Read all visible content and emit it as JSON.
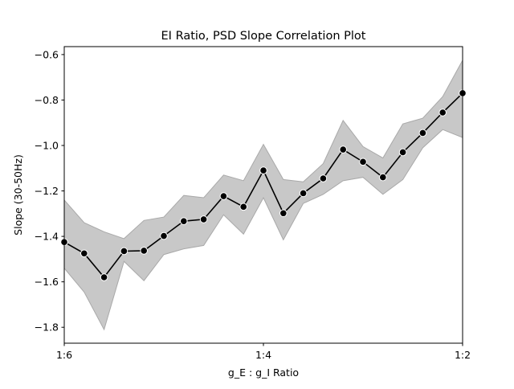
{
  "chart_data": {
    "type": "line",
    "title": "EI Ratio, PSD Slope Correlation Plot",
    "xlabel": "g_E : g_I Ratio",
    "ylabel": "Slope (30-50Hz)",
    "x_tick_labels": [
      "1:6",
      "1:4",
      "1:2"
    ],
    "y_ticks": [
      -0.6,
      -0.8,
      -1.0,
      -1.2,
      -1.4,
      -1.6,
      -1.8
    ],
    "y_tick_labels": [
      "−0.6",
      "−0.8",
      "−1.0",
      "−1.2",
      "−1.4",
      "−1.6",
      "−1.8"
    ],
    "ylim": [
      -1.87,
      -0.565
    ],
    "grid": false,
    "legend": "none",
    "colors": {
      "line": "#000000",
      "band": "#c8c8c8",
      "band_edge": "#a9a9a9",
      "marker_edge": "#ffffff"
    },
    "series": [
      {
        "mean": [
          -1.425,
          -1.475,
          -1.58,
          -1.465,
          -1.463,
          -1.398,
          -1.333,
          -1.325,
          -1.223,
          -1.27,
          -1.11,
          -1.298,
          -1.21,
          -1.145,
          -1.018,
          -1.072,
          -1.14,
          -1.03,
          -0.945,
          -0.855,
          -0.77
        ],
        "upper": [
          -1.24,
          -1.34,
          -1.38,
          -1.41,
          -1.33,
          -1.315,
          -1.22,
          -1.23,
          -1.13,
          -1.155,
          -0.995,
          -1.15,
          -1.16,
          -1.08,
          -0.89,
          -1.005,
          -1.055,
          -0.905,
          -0.88,
          -0.785,
          -0.625
        ],
        "lower": [
          -1.54,
          -1.645,
          -1.81,
          -1.51,
          -1.595,
          -1.48,
          -1.455,
          -1.44,
          -1.305,
          -1.39,
          -1.23,
          -1.415,
          -1.255,
          -1.215,
          -1.155,
          -1.14,
          -1.215,
          -1.15,
          -1.01,
          -0.93,
          -0.965
        ]
      }
    ]
  }
}
